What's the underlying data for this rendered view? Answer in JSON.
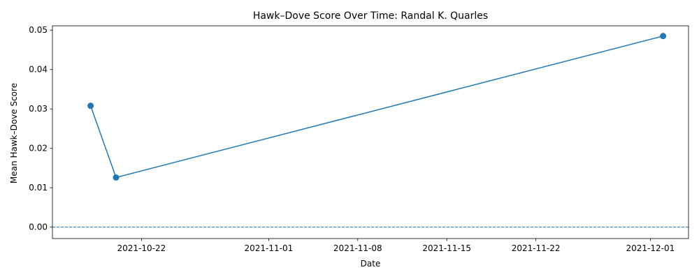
{
  "chart_data": {
    "type": "line",
    "title": "Hawk–Dove Score Over Time: Randal K. Quarles",
    "xlabel": "Date",
    "ylabel": "Mean Hawk–Dove Score",
    "x_ticks": [
      "2021-10-22",
      "2021-11-01",
      "2021-11-08",
      "2021-11-15",
      "2021-11-22",
      "2021-12-01"
    ],
    "y_ticks": [
      "0.00",
      "0.01",
      "0.02",
      "0.03",
      "0.04",
      "0.05"
    ],
    "xlim": [
      "2021-10-15",
      "2021-12-04"
    ],
    "ylim": [
      -0.0029,
      0.0511
    ],
    "grid": false,
    "reference_line": {
      "y": 0,
      "style": "dashed"
    },
    "series": [
      {
        "x": [
          "2021-10-18",
          "2021-10-20",
          "2021-12-02"
        ],
        "values": [
          0.0308,
          0.0126,
          0.0485
        ],
        "color": "#1f77b4",
        "marker": "circle"
      }
    ]
  }
}
